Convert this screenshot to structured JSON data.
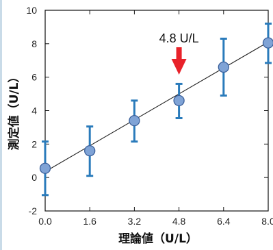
{
  "chart_data": {
    "type": "scatter",
    "title": "",
    "xlabel": "理論値（U/L）",
    "ylabel": "測定値（U/L）",
    "xlim": [
      0,
      8
    ],
    "ylim": [
      -2,
      10
    ],
    "xticks": [
      "0.0",
      "1.6",
      "3.2",
      "4.8",
      "6.4",
      "8.0"
    ],
    "yticks": [
      "-2",
      "0",
      "2",
      "4",
      "6",
      "8",
      "10"
    ],
    "series": [
      {
        "x": [
          0.0,
          1.6,
          3.2,
          4.8,
          6.4,
          8.0
        ],
        "y": [
          0.55,
          1.6,
          3.4,
          4.6,
          6.6,
          8.05
        ],
        "y_low": [
          -1.05,
          0.1,
          2.15,
          3.55,
          4.9,
          6.85
        ],
        "y_high": [
          2.15,
          3.05,
          4.6,
          5.6,
          8.3,
          9.2
        ]
      }
    ],
    "fit_line": {
      "x": [
        0.0,
        8.0
      ],
      "y": [
        0.35,
        8.1
      ]
    },
    "annotation": {
      "text": "4.8 U/L",
      "x": 4.8
    },
    "grid": false,
    "colors": {
      "marker_fill": "#7fa3d6",
      "marker_edge": "#3a5f9a",
      "error_bar": "#2a7bbb",
      "arrow": "#e8222a",
      "line": "#222222"
    }
  }
}
